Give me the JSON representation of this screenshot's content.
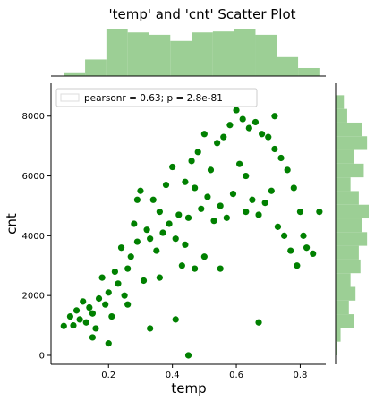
{
  "chart_data": {
    "type": "scatter",
    "title": "'temp' and 'cnt' Scatter Plot",
    "xlabel": "temp",
    "ylabel": "cnt",
    "xlim": [
      0.02,
      0.88
    ],
    "ylim": [
      -300,
      9100
    ],
    "xticks": [
      0.2,
      0.4,
      0.6,
      0.8
    ],
    "xtick_labels": [
      "0.2",
      "0.4",
      "0.6",
      "0.8"
    ],
    "yticks": [
      0,
      2000,
      4000,
      6000,
      8000
    ],
    "ytick_labels": [
      "0",
      "2000",
      "4000",
      "6000",
      "8000"
    ],
    "annotation": "pearsonr = 0.63; p = 2.8e-81",
    "legend_position": "top-left",
    "point_color": "#008000",
    "marginal_color": "#9ccf95",
    "grid": false,
    "series": [
      {
        "values": [
          [
            0.06,
            980
          ],
          [
            0.08,
            1300
          ],
          [
            0.09,
            1000
          ],
          [
            0.1,
            1500
          ],
          [
            0.11,
            1200
          ],
          [
            0.12,
            1800
          ],
          [
            0.13,
            1100
          ],
          [
            0.14,
            1600
          ],
          [
            0.15,
            1400
          ],
          [
            0.16,
            900
          ],
          [
            0.17,
            1900
          ],
          [
            0.18,
            2600
          ],
          [
            0.19,
            1700
          ],
          [
            0.2,
            2100
          ],
          [
            0.21,
            1300
          ],
          [
            0.22,
            2800
          ],
          [
            0.23,
            2400
          ],
          [
            0.24,
            3600
          ],
          [
            0.25,
            2000
          ],
          [
            0.26,
            2900
          ],
          [
            0.27,
            3300
          ],
          [
            0.28,
            4400
          ],
          [
            0.29,
            3800
          ],
          [
            0.3,
            5500
          ],
          [
            0.31,
            2500
          ],
          [
            0.32,
            4200
          ],
          [
            0.33,
            3900
          ],
          [
            0.34,
            5200
          ],
          [
            0.35,
            3500
          ],
          [
            0.36,
            4800
          ],
          [
            0.37,
            4100
          ],
          [
            0.38,
            5700
          ],
          [
            0.39,
            4400
          ],
          [
            0.4,
            6300
          ],
          [
            0.41,
            3900
          ],
          [
            0.42,
            4700
          ],
          [
            0.43,
            3000
          ],
          [
            0.44,
            5800
          ],
          [
            0.45,
            4600
          ],
          [
            0.46,
            6500
          ],
          [
            0.47,
            5600
          ],
          [
            0.48,
            6800
          ],
          [
            0.49,
            4900
          ],
          [
            0.5,
            7400
          ],
          [
            0.51,
            5300
          ],
          [
            0.52,
            6200
          ],
          [
            0.53,
            4500
          ],
          [
            0.54,
            7100
          ],
          [
            0.55,
            5000
          ],
          [
            0.56,
            7300
          ],
          [
            0.57,
            4600
          ],
          [
            0.58,
            7700
          ],
          [
            0.59,
            5400
          ],
          [
            0.6,
            8200
          ],
          [
            0.61,
            6400
          ],
          [
            0.62,
            7900
          ],
          [
            0.63,
            4800
          ],
          [
            0.64,
            7600
          ],
          [
            0.65,
            5200
          ],
          [
            0.66,
            7800
          ],
          [
            0.67,
            4700
          ],
          [
            0.68,
            7400
          ],
          [
            0.69,
            5100
          ],
          [
            0.7,
            7300
          ],
          [
            0.71,
            5500
          ],
          [
            0.72,
            6900
          ],
          [
            0.73,
            4300
          ],
          [
            0.74,
            6600
          ],
          [
            0.75,
            4000
          ],
          [
            0.76,
            6200
          ],
          [
            0.77,
            3500
          ],
          [
            0.78,
            5600
          ],
          [
            0.79,
            3000
          ],
          [
            0.8,
            4800
          ],
          [
            0.81,
            4000
          ],
          [
            0.82,
            3600
          ],
          [
            0.84,
            3400
          ],
          [
            0.86,
            4800
          ],
          [
            0.61,
            8700
          ],
          [
            0.45,
            0
          ],
          [
            0.67,
            1100
          ],
          [
            0.55,
            2900
          ],
          [
            0.41,
            1200
          ],
          [
            0.15,
            600
          ],
          [
            0.2,
            400
          ],
          [
            0.33,
            900
          ],
          [
            0.26,
            1700
          ],
          [
            0.47,
            2900
          ],
          [
            0.36,
            2600
          ],
          [
            0.72,
            8000
          ],
          [
            0.63,
            6000
          ],
          [
            0.29,
            5200
          ],
          [
            0.5,
            3300
          ],
          [
            0.44,
            3700
          ]
        ]
      }
    ],
    "top_histogram": {
      "bin_range": [
        0.06,
        0.86
      ],
      "relative_heights": [
        0.08,
        0.35,
        1.0,
        0.92,
        0.87,
        0.74,
        0.92,
        0.94,
        1.0,
        0.87,
        0.4,
        0.17
      ]
    },
    "right_histogram": {
      "bin_range": [
        0,
        8700
      ],
      "relative_heights": [
        0.05,
        0.15,
        0.55,
        0.4,
        0.6,
        0.45,
        0.75,
        0.7,
        0.95,
        0.8,
        1.0,
        0.7,
        0.45,
        0.85,
        0.55,
        0.95,
        0.8,
        0.35,
        0.25
      ]
    }
  }
}
